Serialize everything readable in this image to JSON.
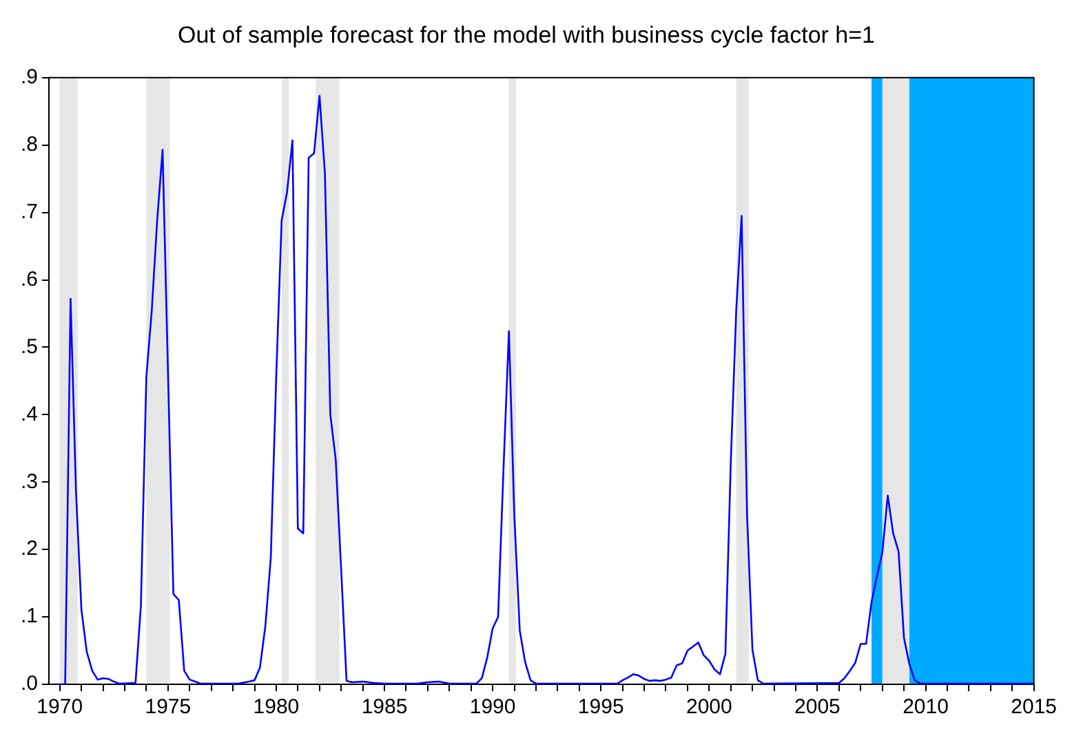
{
  "chart_data": {
    "type": "line",
    "title": "Out of sample forecast for the model with business cycle factor h=1",
    "series": [
      {
        "color": "#0000ff",
        "x": [
          1969.75,
          1970.25,
          1970.5,
          1970.75,
          1971,
          1971.25,
          1971.5,
          1971.75,
          1972,
          1972.25,
          1972.5,
          1972.75,
          1973.5,
          1973.75,
          1974,
          1974.25,
          1974.5,
          1974.75,
          1975,
          1975.25,
          1975.5,
          1975.75,
          1976,
          1976.25,
          1976.5,
          1978.25,
          1978.75,
          1979,
          1979.25,
          1979.5,
          1979.75,
          1980,
          1980.25,
          1980.5,
          1980.75,
          1981,
          1981.25,
          1981.5,
          1981.75,
          1982,
          1982.25,
          1982.5,
          1982.75,
          1983,
          1983.25,
          1983.5,
          1984,
          1984.5,
          1985,
          1986.5,
          1987,
          1987.5,
          1988,
          1989.25,
          1989.5,
          1989.75,
          1990,
          1990.25,
          1990.5,
          1990.75,
          1991,
          1991.25,
          1991.5,
          1991.75,
          1992,
          1995.75,
          1996,
          1996.25,
          1996.5,
          1996.75,
          1997,
          1997.25,
          1997.5,
          1997.75,
          1998,
          1998.25,
          1998.5,
          1998.75,
          1999,
          1999.25,
          1999.5,
          1999.75,
          2000,
          2000.25,
          2000.5,
          2000.75,
          2001,
          2001.25,
          2001.5,
          2001.75,
          2002,
          2002.25,
          2002.5,
          2006,
          2006.25,
          2006.5,
          2006.75,
          2007,
          2007.25,
          2007.5,
          2007.75,
          2008,
          2008.25,
          2008.5,
          2008.75,
          2009,
          2009.25,
          2009.5,
          2009.75,
          2015
        ],
        "values": [
          0,
          0,
          0.572,
          0.287,
          0.111,
          0.048,
          0.02,
          0.007,
          0.009,
          0.008,
          0.004,
          0.001,
          0.002,
          0.118,
          0.456,
          0.554,
          0.688,
          0.793,
          0.463,
          0.134,
          0.125,
          0.02,
          0.007,
          0.004,
          0.001,
          0.001,
          0.004,
          0.006,
          0.025,
          0.087,
          0.188,
          0.456,
          0.688,
          0.73,
          0.807,
          0.231,
          0.224,
          0.781,
          0.788,
          0.873,
          0.758,
          0.4,
          0.333,
          0.17,
          0.005,
          0.003,
          0.004,
          0.002,
          0.001,
          0.001,
          0.003,
          0.004,
          0.001,
          0.001,
          0.009,
          0.04,
          0.083,
          0.1,
          0.32,
          0.524,
          0.25,
          0.08,
          0.033,
          0.006,
          0.001,
          0.001,
          0.006,
          0.01,
          0.015,
          0.013,
          0.008,
          0.005,
          0.006,
          0.005,
          0.007,
          0.01,
          0.028,
          0.031,
          0.05,
          0.056,
          0.062,
          0.043,
          0.035,
          0.022,
          0.015,
          0.045,
          0.33,
          0.554,
          0.695,
          0.252,
          0.051,
          0.006,
          0.001,
          0.002,
          0.009,
          0.02,
          0.032,
          0.06,
          0.06,
          0.122,
          0.16,
          0.195,
          0.28,
          0.224,
          0.197,
          0.069,
          0.03,
          0.006,
          0.001,
          0.001
        ]
      }
    ],
    "bands": [
      {
        "axis": "x",
        "from": 1970.0,
        "to": 1970.83,
        "color": "#e6e6e6"
      },
      {
        "axis": "x",
        "from": 1974.0,
        "to": 1975.08,
        "color": "#e6e6e6"
      },
      {
        "axis": "x",
        "from": 1980.25,
        "to": 1980.58,
        "color": "#e6e6e6"
      },
      {
        "axis": "x",
        "from": 1981.83,
        "to": 1982.92,
        "color": "#e6e6e6"
      },
      {
        "axis": "x",
        "from": 1990.75,
        "to": 1991.08,
        "color": "#e6e6e6"
      },
      {
        "axis": "x",
        "from": 2001.25,
        "to": 2001.83,
        "color": "#e6e6e6"
      },
      {
        "axis": "x",
        "from": 2008.0,
        "to": 2009.25,
        "color": "#e6e6e6"
      },
      {
        "axis": "x",
        "from": 2007.5,
        "to": 2008.0,
        "color": "#00aaff"
      },
      {
        "axis": "x",
        "from": 2009.25,
        "to": 2015,
        "color": "#00aaff"
      }
    ],
    "xlim": [
      1969.5,
      2015
    ],
    "xticks": [
      1970,
      {
        "value": 1971,
        "label": null
      },
      {
        "value": 1972,
        "label": null
      },
      {
        "value": 1973,
        "label": null
      },
      {
        "value": 1974,
        "label": null
      },
      1975,
      {
        "value": 1976,
        "label": null
      },
      {
        "value": 1977,
        "label": null
      },
      {
        "value": 1978,
        "label": null
      },
      {
        "value": 1979,
        "label": null
      },
      1980,
      {
        "value": 1981,
        "label": null
      },
      {
        "value": 1982,
        "label": null
      },
      {
        "value": 1983,
        "label": null
      },
      {
        "value": 1984,
        "label": null
      },
      1985,
      {
        "value": 1986,
        "label": null
      },
      {
        "value": 1987,
        "label": null
      },
      {
        "value": 1988,
        "label": null
      },
      {
        "value": 1989,
        "label": null
      },
      1990,
      {
        "value": 1991,
        "label": null
      },
      {
        "value": 1992,
        "label": null
      },
      {
        "value": 1993,
        "label": null
      },
      {
        "value": 1994,
        "label": null
      },
      1995,
      {
        "value": 1996,
        "label": null
      },
      {
        "value": 1997,
        "label": null
      },
      {
        "value": 1998,
        "label": null
      },
      {
        "value": 1999,
        "label": null
      },
      2000,
      {
        "value": 2001,
        "label": null
      },
      {
        "value": 2002,
        "label": null
      },
      {
        "value": 2003,
        "label": null
      },
      {
        "value": 2004,
        "label": null
      },
      2005,
      {
        "value": 2006,
        "label": null
      },
      {
        "value": 2007,
        "label": null
      },
      {
        "value": 2008,
        "label": null
      },
      {
        "value": 2009,
        "label": null
      },
      2010,
      {
        "value": 2011,
        "label": null
      },
      {
        "value": 2012,
        "label": null
      },
      {
        "value": 2013,
        "label": null
      },
      {
        "value": 2014,
        "label": null
      },
      2015
    ],
    "ylim": [
      0,
      0.9
    ],
    "yticks": [
      {
        "value": 0,
        "label": ".0"
      },
      {
        "value": 0.1,
        "label": ".1"
      },
      {
        "value": 0.2,
        "label": ".2"
      },
      {
        "value": 0.3,
        "label": ".3"
      },
      {
        "value": 0.4,
        "label": ".4"
      },
      {
        "value": 0.5,
        "label": ".5"
      },
      {
        "value": 0.6,
        "label": ".6"
      },
      {
        "value": 0.7,
        "label": ".7"
      },
      {
        "value": 0.8,
        "label": ".8"
      },
      {
        "value": 0.9,
        "label": ".9"
      }
    ],
    "marker": "none",
    "line_style": "solid",
    "legend": false
  }
}
